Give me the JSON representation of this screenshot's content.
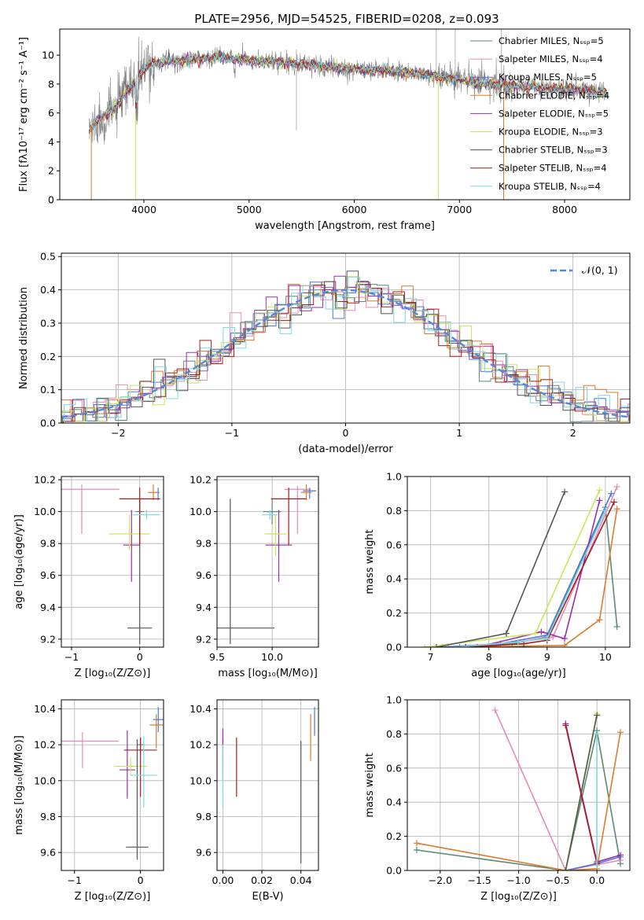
{
  "title": "PLATE=2956, MJD=54525, FIBERID=0208, z=0.093",
  "colors": {
    "chabrier_miles": "#5b8a72",
    "salpeter_miles": "#e68ab8",
    "kroupa_miles": "#4b79d8",
    "chabrier_elodie": "#d97c2b",
    "salpeter_elodie": "#9b2cb0",
    "kroupa_elodie": "#c8e85c",
    "chabrier_stelib": "#555555",
    "salpeter_stelib": "#a81c1c",
    "kroupa_stelib": "#7fd8e0",
    "data": "#808080",
    "normal": "#5588dd",
    "grid": "#b0b0b0"
  },
  "chart_data": [
    {
      "id": "spectrum",
      "type": "line",
      "xlabel": "wavelength [Angstrom, rest frame]",
      "ylabel": "Flux [fλ10⁻¹⁷ erg cm⁻² s⁻¹ A⁻¹]",
      "xlim": [
        3200,
        8620
      ],
      "ylim": [
        0,
        11.8
      ],
      "xticks": [
        4000,
        5000,
        6000,
        7000,
        8000
      ],
      "yticks": [
        0,
        2,
        4,
        6,
        8,
        10
      ],
      "continuum": [
        [
          3480,
          4.8
        ],
        [
          3550,
          5.4
        ],
        [
          3650,
          5.9
        ],
        [
          3750,
          6.5
        ],
        [
          3850,
          7.6
        ],
        [
          3950,
          8.5
        ],
        [
          4050,
          9.3
        ],
        [
          4150,
          9.5
        ],
        [
          4300,
          9.6
        ],
        [
          4500,
          9.7
        ],
        [
          4700,
          9.9
        ],
        [
          4900,
          9.7
        ],
        [
          5100,
          9.6
        ],
        [
          5300,
          9.5
        ],
        [
          5500,
          9.4
        ],
        [
          5700,
          9.2
        ],
        [
          5900,
          9.1
        ],
        [
          6100,
          9.0
        ],
        [
          6300,
          8.9
        ],
        [
          6500,
          8.8
        ],
        [
          6700,
          8.6
        ],
        [
          6900,
          8.4
        ],
        [
          7100,
          8.2
        ],
        [
          7300,
          8.0
        ],
        [
          7500,
          7.9
        ],
        [
          7700,
          7.8
        ],
        [
          7900,
          7.7
        ],
        [
          8100,
          7.6
        ],
        [
          8300,
          7.5
        ],
        [
          8400,
          7.4
        ]
      ],
      "series": [
        {
          "name": "Chabrier MILES, Nₛₛₚ=5",
          "color_key": "chabrier_miles"
        },
        {
          "name": "Salpeter MILES, Nₛₛₚ=4",
          "color_key": "salpeter_miles"
        },
        {
          "name": "Kroupa MILES, Nₛₛₚ=5",
          "color_key": "kroupa_miles"
        },
        {
          "name": "Chabrier ELODIE, Nₛₛₚ=4",
          "color_key": "chabrier_elodie"
        },
        {
          "name": "Salpeter ELODIE, Nₛₛₚ=5",
          "color_key": "salpeter_elodie"
        },
        {
          "name": "Kroupa ELODIE, Nₛₛₚ=3",
          "color_key": "kroupa_elodie"
        },
        {
          "name": "Chabrier STELIB, Nₛₛₚ=3",
          "color_key": "chabrier_stelib"
        },
        {
          "name": "Salpeter STELIB, Nₛₛₚ=4",
          "color_key": "salpeter_stelib"
        },
        {
          "name": "Kroupa STELIB, Nₛₛₚ=4",
          "color_key": "kroupa_stelib"
        }
      ],
      "legend": "right"
    },
    {
      "id": "residuals",
      "type": "line",
      "xlabel": "(data-model)/error",
      "ylabel": "Normed distribution",
      "xlim": [
        -2.5,
        2.5
      ],
      "ylim": [
        0,
        0.51
      ],
      "xticks": [
        -2,
        -1,
        0,
        1,
        2
      ],
      "yticks": [
        0.0,
        0.1,
        0.2,
        0.3,
        0.4,
        0.5
      ],
      "bin_width": 0.1,
      "legend_label": "𝒩(0, 1)",
      "legend": "top-right",
      "grid": true
    },
    {
      "id": "age_vs_Z",
      "type": "scatter",
      "xlabel": "Z [log₁₀(Z/Z⊙)]",
      "ylabel": "age  [log₁₀(age/yr)]",
      "xlim": [
        -1.15,
        0.35
      ],
      "ylim": [
        9.15,
        10.22
      ],
      "xticks": [
        -1,
        0
      ],
      "yticks": [
        9.2,
        9.4,
        9.6,
        9.8,
        10.0,
        10.2
      ],
      "points": [
        {
          "c": "chabrier_miles",
          "x": 0.0,
          "y": 10.0,
          "xe": 0.06,
          "yhi": 0.08,
          "ylo": 0.08
        },
        {
          "c": "salpeter_miles",
          "x": -0.85,
          "y": 10.14,
          "xe": 0.55,
          "yhi": 0.03,
          "ylo": 0.28
        },
        {
          "c": "kroupa_miles",
          "x": 0.27,
          "y": 10.12,
          "xe": 0.02,
          "yhi": 0.03,
          "ylo": 0.05
        },
        {
          "c": "chabrier_elodie",
          "x": 0.2,
          "y": 10.12,
          "xe": 0.08,
          "yhi": 0.05,
          "ylo": 0.05
        },
        {
          "c": "salpeter_elodie",
          "x": -0.12,
          "y": 9.79,
          "xe": 0.12,
          "yhi": 0.22,
          "ylo": 0.23
        },
        {
          "c": "kroupa_elodie",
          "x": -0.15,
          "y": 9.86,
          "xe": 0.3,
          "yhi": 0.12,
          "ylo": 0.1
        },
        {
          "c": "chabrier_stelib",
          "x": 0.0,
          "y": 9.27,
          "xe": 0.18,
          "yhi": 0.81,
          "ylo": 0.1
        },
        {
          "c": "salpeter_stelib",
          "x": 0.0,
          "y": 10.08,
          "xe": 0.3,
          "yhi": 0.07,
          "ylo": 0.29
        },
        {
          "c": "kroupa_stelib",
          "x": 0.1,
          "y": 9.98,
          "xe": 0.2,
          "yhi": 0.03,
          "ylo": 0.03
        }
      ],
      "grid": true
    },
    {
      "id": "age_vs_mass",
      "type": "scatter",
      "xlabel": "mass [log₁₀(M/M⊙)]",
      "ylabel": "",
      "xlim": [
        9.5,
        10.42
      ],
      "ylim": [
        9.15,
        10.22
      ],
      "xticks": [
        9.5,
        10.0
      ],
      "yticks": [
        9.2,
        9.4,
        9.6,
        9.8,
        10.0,
        10.2
      ],
      "points": [
        {
          "c": "chabrier_miles",
          "x": 10.0,
          "y": 10.0,
          "xe": 0.08,
          "yhi": 0.08,
          "ylo": 0.08
        },
        {
          "c": "salpeter_miles",
          "x": 10.23,
          "y": 10.14,
          "xe": 0.12,
          "yhi": 0.02,
          "ylo": 0.28
        },
        {
          "c": "kroupa_miles",
          "x": 10.34,
          "y": 10.13,
          "xe": 0.06,
          "yhi": 0.02,
          "ylo": 0.05
        },
        {
          "c": "chabrier_elodie",
          "x": 10.31,
          "y": 10.12,
          "xe": 0.05,
          "yhi": 0.05,
          "ylo": 0.05
        },
        {
          "c": "salpeter_elodie",
          "x": 10.06,
          "y": 9.79,
          "xe": 0.12,
          "yhi": 0.22,
          "ylo": 0.23
        },
        {
          "c": "kroupa_elodie",
          "x": 10.03,
          "y": 9.86,
          "xe": 0.1,
          "yhi": 0.12,
          "ylo": 0.14
        },
        {
          "c": "chabrier_stelib",
          "x": 9.62,
          "y": 9.27,
          "xe": 0.4,
          "yhi": 0.81,
          "ylo": 0.1
        },
        {
          "c": "salpeter_stelib",
          "x": 10.15,
          "y": 10.08,
          "xe": 0.16,
          "yhi": 0.07,
          "ylo": 0.29
        },
        {
          "c": "kroupa_stelib",
          "x": 9.98,
          "y": 9.98,
          "xe": 0.07,
          "yhi": 0.03,
          "ylo": 0.03
        }
      ],
      "grid": true
    },
    {
      "id": "mass_weight_vs_age",
      "type": "line",
      "xlabel": "age  [log₁₀(age/yr)]",
      "ylabel": "mass weight",
      "xlim": [
        6.6,
        10.42
      ],
      "ylim": [
        0.0,
        1.0
      ],
      "xticks": [
        7,
        8,
        9,
        10
      ],
      "yticks": [
        0.0,
        0.2,
        0.4,
        0.6,
        0.8,
        1.0
      ],
      "series": [
        {
          "c": "chabrier_miles",
          "x": [
            7.5,
            8.4,
            9.0,
            10.0,
            10.2
          ],
          "y": [
            0.0,
            0.02,
            0.06,
            0.82,
            0.12
          ]
        },
        {
          "c": "salpeter_miles",
          "x": [
            7.3,
            8.5,
            9.1,
            10.2
          ],
          "y": [
            0.0,
            0.03,
            0.06,
            0.94
          ]
        },
        {
          "c": "kroupa_miles",
          "x": [
            7.2,
            8.2,
            9.0,
            10.1
          ],
          "y": [
            0.0,
            0.02,
            0.07,
            0.9
          ]
        },
        {
          "c": "chabrier_elodie",
          "x": [
            7.6,
            9.3,
            9.9,
            10.2
          ],
          "y": [
            0.0,
            0.01,
            0.16,
            0.81
          ]
        },
        {
          "c": "salpeter_elodie",
          "x": [
            7.8,
            8.9,
            9.3,
            9.9
          ],
          "y": [
            0.0,
            0.09,
            0.05,
            0.86
          ]
        },
        {
          "c": "kroupa_elodie",
          "x": [
            6.9,
            8.8,
            9.9
          ],
          "y": [
            0.0,
            0.08,
            0.92
          ]
        },
        {
          "c": "chabrier_stelib",
          "x": [
            7.1,
            8.3,
            9.3
          ],
          "y": [
            0.0,
            0.08,
            0.91
          ]
        },
        {
          "c": "salpeter_stelib",
          "x": [
            7.6,
            8.6,
            9.0,
            10.15
          ],
          "y": [
            0.0,
            0.02,
            0.04,
            0.85
          ]
        },
        {
          "c": "kroupa_stelib",
          "x": [
            7.4,
            8.5,
            9.0,
            10.0
          ],
          "y": [
            0.0,
            0.03,
            0.05,
            0.8
          ]
        }
      ],
      "grid": true
    },
    {
      "id": "mass_vs_Z",
      "type": "scatter",
      "xlabel": "Z [log₁₀(Z/Z⊙)]",
      "ylabel": "mass [log₁₀(M/M⊙)]",
      "xlim": [
        -1.2,
        0.35
      ],
      "ylim": [
        9.5,
        10.45
      ],
      "xticks": [
        -1,
        0
      ],
      "yticks": [
        9.6,
        9.8,
        10.0,
        10.2,
        10.4
      ],
      "points": [
        {
          "c": "chabrier_miles",
          "x": 0.0,
          "y": 10.2,
          "xe": 0.06,
          "yhi": 0.04,
          "ylo": 0.06
        },
        {
          "c": "salpeter_miles",
          "x": -0.88,
          "y": 10.22,
          "xe": 0.55,
          "yhi": 0.05,
          "ylo": 0.15
        },
        {
          "c": "kroupa_miles",
          "x": 0.27,
          "y": 10.34,
          "xe": 0.08,
          "yhi": 0.07,
          "ylo": 0.07
        },
        {
          "c": "chabrier_elodie",
          "x": 0.24,
          "y": 10.31,
          "xe": 0.1,
          "yhi": 0.06,
          "ylo": 0.13
        },
        {
          "c": "salpeter_elodie",
          "x": -0.2,
          "y": 10.06,
          "xe": 0.12,
          "yhi": 0.22,
          "ylo": 0.16
        },
        {
          "c": "kroupa_elodie",
          "x": -0.15,
          "y": 10.08,
          "xe": 0.25,
          "yhi": 0.05,
          "ylo": 0.05
        },
        {
          "c": "chabrier_stelib",
          "x": -0.05,
          "y": 9.63,
          "xe": 0.17,
          "yhi": 0.6,
          "ylo": 0.07
        },
        {
          "c": "salpeter_stelib",
          "x": 0.0,
          "y": 10.17,
          "xe": 0.25,
          "yhi": 0.07,
          "ylo": 0.26
        },
        {
          "c": "kroupa_stelib",
          "x": 0.05,
          "y": 10.03,
          "xe": 0.2,
          "yhi": 0.22,
          "ylo": 0.18
        }
      ],
      "grid": true
    },
    {
      "id": "mass_vs_ebv",
      "type": "scatter",
      "xlabel": "E(B-V)",
      "ylabel": "",
      "xlim": [
        -0.003,
        0.049
      ],
      "ylim": [
        9.5,
        10.45
      ],
      "xticks": [
        0.0,
        0.02,
        0.04
      ],
      "yticks": [
        9.6,
        9.8,
        10.0,
        10.2,
        10.4
      ],
      "points": [
        {
          "c": "chabrier_miles",
          "x": 0.0,
          "y": 10.2,
          "xe": 0,
          "yhi": 0.04,
          "ylo": 0.06
        },
        {
          "c": "salpeter_miles",
          "x": 0.0,
          "y": 10.22,
          "xe": 0,
          "yhi": 0.05,
          "ylo": 0.15
        },
        {
          "c": "kroupa_miles",
          "x": 0.047,
          "y": 10.34,
          "xe": 0,
          "yhi": 0.07,
          "ylo": 0.09
        },
        {
          "c": "chabrier_elodie",
          "x": 0.045,
          "y": 10.31,
          "xe": 0,
          "yhi": 0.06,
          "ylo": 0.2
        },
        {
          "c": "salpeter_elodie",
          "x": 0.0,
          "y": 10.06,
          "xe": 0,
          "yhi": 0.23,
          "ylo": 0.05
        },
        {
          "c": "kroupa_elodie",
          "x": 0.0,
          "y": 10.08,
          "xe": 0,
          "yhi": 0.12,
          "ylo": 0.12
        },
        {
          "c": "chabrier_stelib",
          "x": 0.04,
          "y": 9.63,
          "xe": 0,
          "yhi": 0.59,
          "ylo": 0.09
        },
        {
          "c": "salpeter_stelib",
          "x": 0.007,
          "y": 10.17,
          "xe": 0,
          "yhi": 0.07,
          "ylo": 0.26
        },
        {
          "c": "kroupa_stelib",
          "x": 0.0,
          "y": 10.03,
          "xe": 0,
          "yhi": 0.17,
          "ylo": 0.18
        }
      ],
      "grid": true
    },
    {
      "id": "mass_weight_vs_Z",
      "type": "line",
      "xlabel": "Z [log₁₀(Z/Z⊙)]",
      "ylabel": "mass weight",
      "xlim": [
        -2.42,
        0.42
      ],
      "ylim": [
        0.0,
        1.0
      ],
      "xticks": [
        -2.0,
        -1.5,
        -1.0,
        -0.5,
        0.0
      ],
      "yticks": [
        0.0,
        0.2,
        0.4,
        0.6,
        0.8,
        1.0
      ],
      "series": [
        {
          "c": "chabrier_miles",
          "x": [
            -2.3,
            -0.4,
            0.0,
            0.3
          ],
          "y": [
            0.12,
            0.0,
            0.82,
            0.04
          ]
        },
        {
          "c": "salpeter_miles",
          "x": [
            -1.3,
            -0.4,
            0.3
          ],
          "y": [
            0.94,
            0.0,
            0.06
          ]
        },
        {
          "c": "kroupa_miles",
          "x": [
            -0.4,
            0.0,
            0.3
          ],
          "y": [
            0.0,
            0.04,
            0.08
          ]
        },
        {
          "c": "chabrier_elodie",
          "x": [
            -2.3,
            -0.4,
            0.0,
            0.3
          ],
          "y": [
            0.16,
            0.0,
            0.01,
            0.81
          ]
        },
        {
          "c": "salpeter_elodie",
          "x": [
            -0.4,
            0.0,
            0.3
          ],
          "y": [
            0.86,
            0.05,
            0.09
          ]
        },
        {
          "c": "kroupa_elodie",
          "x": [
            -0.4,
            0.0
          ],
          "y": [
            0.0,
            0.92
          ]
        },
        {
          "c": "chabrier_stelib",
          "x": [
            -0.4,
            0.0
          ],
          "y": [
            0.0,
            0.91
          ]
        },
        {
          "c": "salpeter_stelib",
          "x": [
            -0.4,
            0.0
          ],
          "y": [
            0.85,
            0.04
          ]
        },
        {
          "c": "kroupa_stelib",
          "x": [
            0.0,
            0.0
          ],
          "y": [
            0.8,
            0.03
          ]
        }
      ],
      "grid": true
    }
  ]
}
